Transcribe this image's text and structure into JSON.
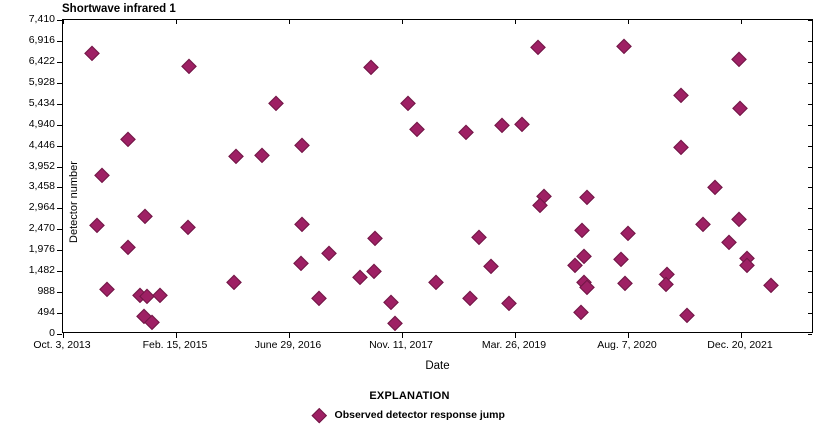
{
  "title": "Shortwave infrared 1",
  "axes": {
    "ylabel": "Detector number",
    "xlabel": "Date"
  },
  "legend": {
    "heading": "EXPLANATION",
    "items": [
      {
        "marker": "diamond",
        "label": "Observed detector response jump"
      }
    ]
  },
  "colors": {
    "marker_fill": "#9e2064",
    "marker_edge": "#6f1745",
    "axis": "#000000"
  },
  "chart_data": {
    "type": "scatter",
    "title": "Shortwave infrared 1",
    "xlabel": "Date",
    "ylabel": "Detector number",
    "x_unit": "days since first tick (Oct. 3, 2013); ticks every 500 days",
    "x_range_days": [
      0,
      3323
    ],
    "ylim": [
      0,
      7410
    ],
    "grid": false,
    "legend_position": "below-chart",
    "x_ticks": [
      {
        "t": 0,
        "label": "Oct. 3, 2013"
      },
      {
        "t": 500,
        "label": "Feb. 15, 2015"
      },
      {
        "t": 1000,
        "label": "June 29, 2016"
      },
      {
        "t": 1500,
        "label": "Nov. 11, 2017"
      },
      {
        "t": 2000,
        "label": "Mar. 26, 2019"
      },
      {
        "t": 2500,
        "label": "Aug. 7, 2020"
      },
      {
        "t": 3000,
        "label": "Dec. 20, 2021"
      }
    ],
    "y_ticks": [
      {
        "v": 0,
        "label": "0"
      },
      {
        "v": 494,
        "label": "494"
      },
      {
        "v": 988,
        "label": "988"
      },
      {
        "v": 1482,
        "label": "1,482"
      },
      {
        "v": 1976,
        "label": "1,976"
      },
      {
        "v": 2470,
        "label": "2,470"
      },
      {
        "v": 2964,
        "label": "2,964"
      },
      {
        "v": 3458,
        "label": "3,458"
      },
      {
        "v": 3952,
        "label": "3,952"
      },
      {
        "v": 4446,
        "label": "4,446"
      },
      {
        "v": 4940,
        "label": "4,940"
      },
      {
        "v": 5434,
        "label": "5,434"
      },
      {
        "v": 5928,
        "label": "5,928"
      },
      {
        "v": 6422,
        "label": "6,422"
      },
      {
        "v": 6916,
        "label": "6,916"
      },
      {
        "v": 7410,
        "label": "7,410"
      }
    ],
    "series": [
      {
        "name": "Observed detector response jump",
        "marker": "diamond",
        "color": "#9e2064",
        "points": [
          [
            128,
            6630
          ],
          [
            557,
            6320
          ],
          [
            1363,
            6300
          ],
          [
            2102,
            6770
          ],
          [
            2482,
            6800
          ],
          [
            2991,
            6500
          ],
          [
            942,
            5460
          ],
          [
            1527,
            5450
          ],
          [
            2735,
            5640
          ],
          [
            2996,
            5330
          ],
          [
            288,
            4610
          ],
          [
            1058,
            4460
          ],
          [
            1566,
            4840
          ],
          [
            1783,
            4770
          ],
          [
            1943,
            4940
          ],
          [
            2031,
            4960
          ],
          [
            2735,
            4410
          ],
          [
            766,
            4200
          ],
          [
            881,
            4225
          ],
          [
            173,
            3750
          ],
          [
            2885,
            3470
          ],
          [
            2128,
            3260
          ],
          [
            2319,
            3230
          ],
          [
            2111,
            3040
          ],
          [
            363,
            2785
          ],
          [
            2991,
            2715
          ],
          [
            150,
            2570
          ],
          [
            553,
            2525
          ],
          [
            1058,
            2595
          ],
          [
            2832,
            2600
          ],
          [
            2296,
            2455
          ],
          [
            2500,
            2385
          ],
          [
            288,
            2055
          ],
          [
            1381,
            2265
          ],
          [
            1841,
            2290
          ],
          [
            2947,
            2160
          ],
          [
            1177,
            1910
          ],
          [
            2305,
            1840
          ],
          [
            2469,
            1770
          ],
          [
            3027,
            1795
          ],
          [
            1053,
            1675
          ],
          [
            2265,
            1630
          ],
          [
            3027,
            1630
          ],
          [
            1894,
            1605
          ],
          [
            1376,
            1490
          ],
          [
            2672,
            1415
          ],
          [
            1314,
            1345
          ],
          [
            757,
            1230
          ],
          [
            1650,
            1230
          ],
          [
            2305,
            1230
          ],
          [
            2486,
            1205
          ],
          [
            2668,
            1180
          ],
          [
            2319,
            1110
          ],
          [
            3133,
            1155
          ],
          [
            195,
            1060
          ],
          [
            341,
            920
          ],
          [
            372,
            900
          ],
          [
            429,
            920
          ],
          [
            1133,
            850
          ],
          [
            1801,
            850
          ],
          [
            1451,
            755
          ],
          [
            1973,
            730
          ],
          [
            2292,
            520
          ],
          [
            2761,
            450
          ],
          [
            358,
            425
          ],
          [
            394,
            285
          ],
          [
            1469,
            260
          ]
        ]
      }
    ]
  }
}
